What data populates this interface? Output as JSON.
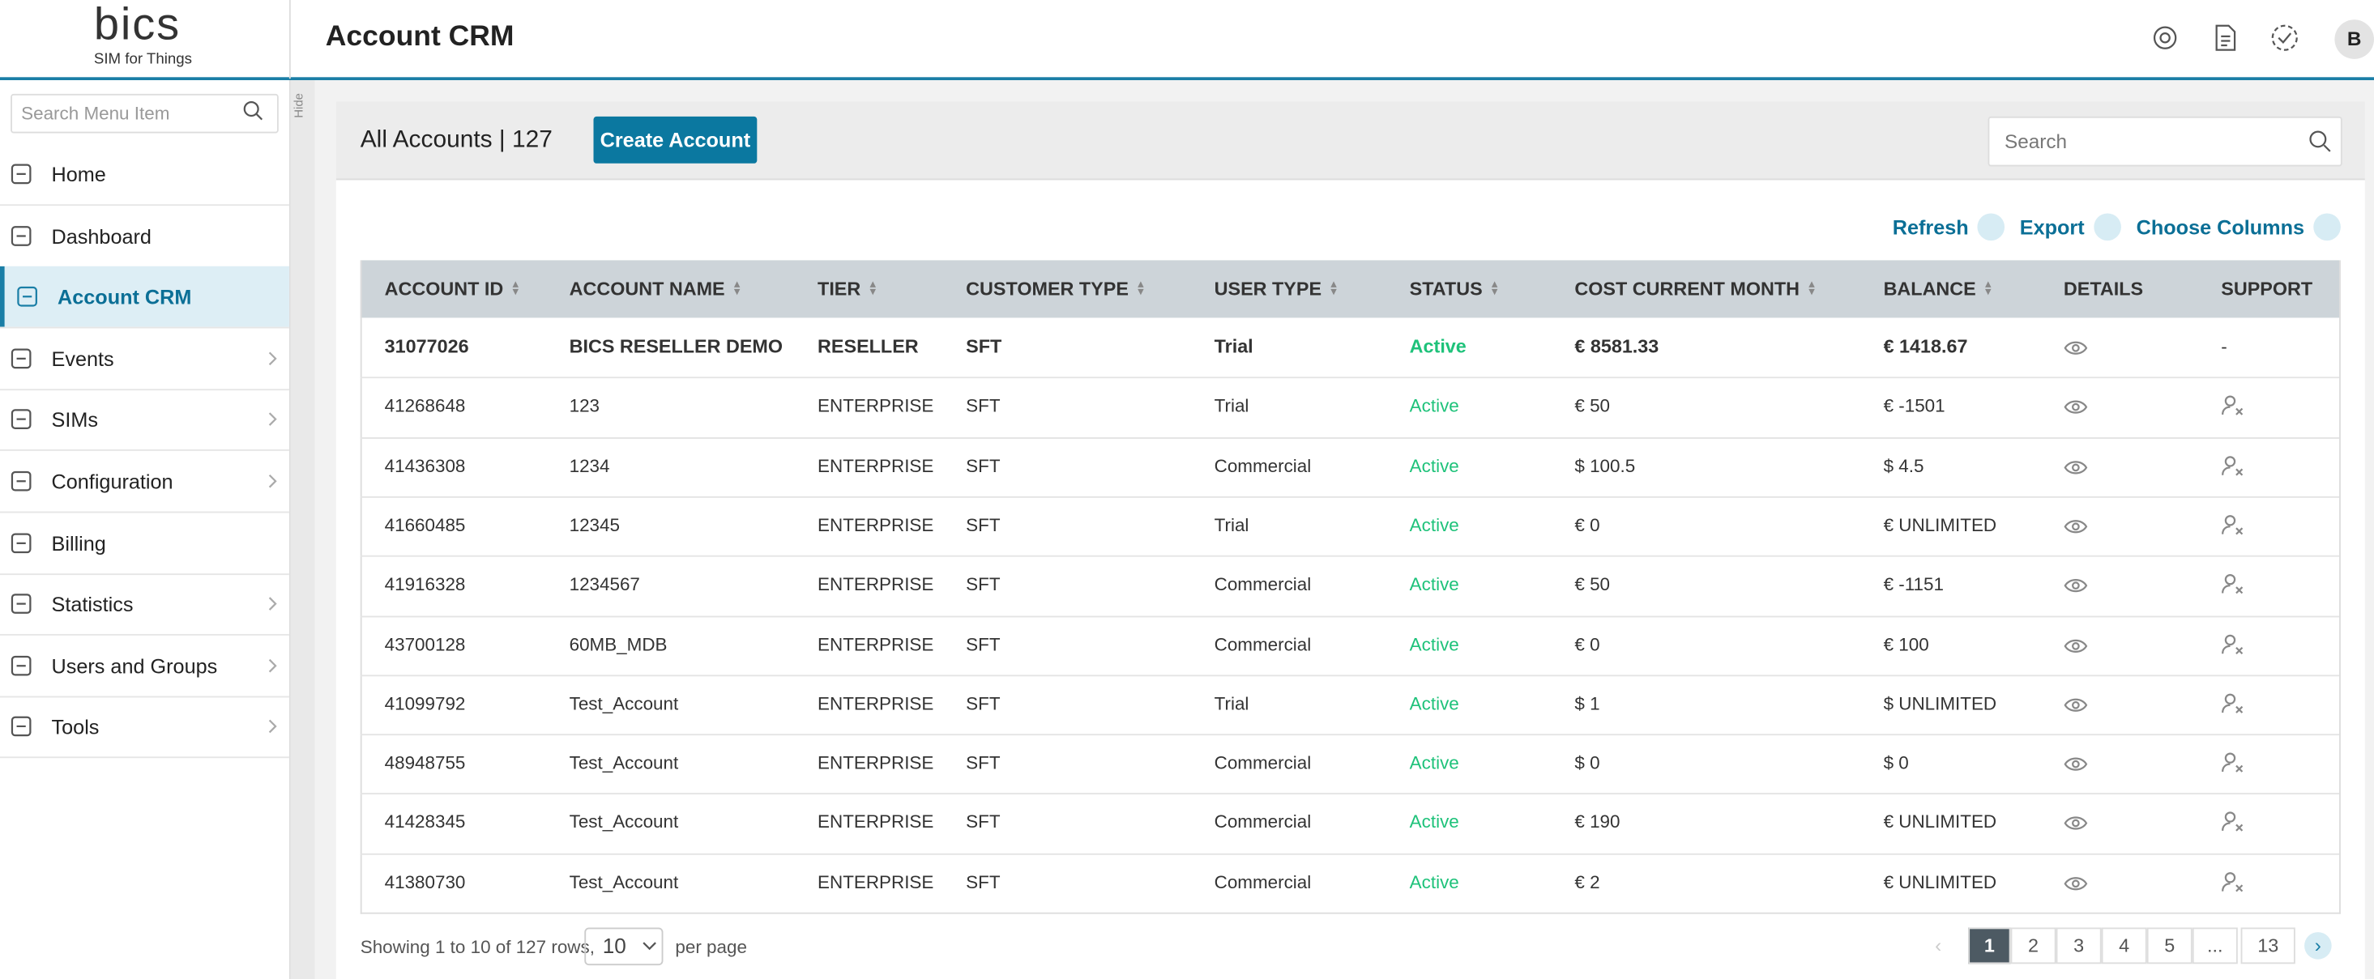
{
  "logo": {
    "brand": "bics",
    "tagline": "SIM for Things"
  },
  "header": {
    "title": "Account CRM",
    "avatar": "B"
  },
  "sidebar": {
    "search_placeholder": "Search Menu Item",
    "hide": "Hide",
    "items": [
      {
        "label": "Home"
      },
      {
        "label": "Dashboard"
      },
      {
        "label": "Account CRM",
        "active": true
      },
      {
        "label": "Events",
        "arrow": true
      },
      {
        "label": "SIMs",
        "arrow": true
      },
      {
        "label": "Configuration",
        "arrow": true
      },
      {
        "label": "Billing"
      },
      {
        "label": "Statistics",
        "arrow": true
      },
      {
        "label": "Users and Groups",
        "arrow": true
      },
      {
        "label": "Tools",
        "arrow": true
      }
    ]
  },
  "card": {
    "title": "All Accounts | 127",
    "create_button": "Create Account",
    "search_placeholder": "Search",
    "actions": [
      "Refresh",
      "Export",
      "Choose Columns"
    ]
  },
  "table": {
    "columns": [
      "ACCOUNT ID",
      "ACCOUNT NAME",
      "TIER",
      "CUSTOMER TYPE",
      "USER TYPE",
      "STATUS",
      "COST CURRENT MONTH",
      "BALANCE",
      "DETAILS",
      "SUPPORT"
    ],
    "rows": [
      {
        "cells": [
          "31077026",
          "BICS RESELLER DEMO",
          "RESELLER",
          "SFT",
          "Trial",
          "Active",
          "€ 8581.33",
          "€ 1418.67"
        ],
        "support": "-",
        "bold": true
      },
      {
        "cells": [
          "41268648",
          "123",
          "ENTERPRISE",
          "SFT",
          "Trial",
          "Active",
          "€ 50",
          "€ -1501"
        ]
      },
      {
        "cells": [
          "41436308",
          "1234",
          "ENTERPRISE",
          "SFT",
          "Commercial",
          "Active",
          "$ 100.5",
          "$ 4.5"
        ]
      },
      {
        "cells": [
          "41660485",
          "12345",
          "ENTERPRISE",
          "SFT",
          "Trial",
          "Active",
          "€ 0",
          "€ UNLIMITED"
        ]
      },
      {
        "cells": [
          "41916328",
          "1234567",
          "ENTERPRISE",
          "SFT",
          "Commercial",
          "Active",
          "€ 50",
          "€ -1151"
        ]
      },
      {
        "cells": [
          "43700128",
          "60MB_MDB",
          "ENTERPRISE",
          "SFT",
          "Commercial",
          "Active",
          "€ 0",
          "€ 100"
        ]
      },
      {
        "cells": [
          "41099792",
          "Test_Account",
          "ENTERPRISE",
          "SFT",
          "Trial",
          "Active",
          "$ 1",
          "$ UNLIMITED"
        ]
      },
      {
        "cells": [
          "48948755",
          "Test_Account",
          "ENTERPRISE",
          "SFT",
          "Commercial",
          "Active",
          "$ 0",
          "$ 0"
        ]
      },
      {
        "cells": [
          "41428345",
          "Test_Account",
          "ENTERPRISE",
          "SFT",
          "Commercial",
          "Active",
          "€ 190",
          "€ UNLIMITED"
        ]
      },
      {
        "cells": [
          "41380730",
          "Test_Account",
          "ENTERPRISE",
          "SFT",
          "Commercial",
          "Active",
          "€ 2",
          "€ UNLIMITED"
        ]
      }
    ]
  },
  "footer": {
    "showing": "Showing 1 to 10 of 127 rows,",
    "per_page_value": "10",
    "per_page": "per page",
    "pages": [
      "1",
      "2",
      "3",
      "4",
      "5",
      "...",
      "13"
    ]
  }
}
